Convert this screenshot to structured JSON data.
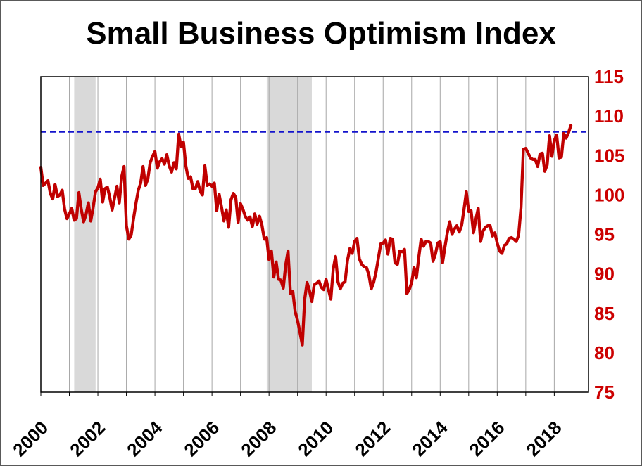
{
  "chart_data": {
    "type": "line",
    "title": "Small Business Optimism Index",
    "xlim": [
      2000,
      2019.2
    ],
    "ylim": [
      75,
      115
    ],
    "y_ticks": [
      75,
      80,
      85,
      90,
      95,
      100,
      105,
      110,
      115
    ],
    "x_tick_labels": [
      "2000",
      "2002",
      "2004",
      "2006",
      "2008",
      "2010",
      "2012",
      "2014",
      "2016",
      "2018"
    ],
    "gridline_years": [
      2000,
      2001,
      2002,
      2003,
      2004,
      2005,
      2006,
      2007,
      2008,
      2009,
      2010,
      2011,
      2012,
      2013,
      2014,
      2015,
      2016,
      2017,
      2018
    ],
    "reference_line": {
      "value": 108.0,
      "style": "dashed"
    },
    "recession_bands": [
      {
        "start": 2001.17,
        "end": 2001.92
      },
      {
        "start": 2007.92,
        "end": 2009.5
      }
    ],
    "colors": {
      "line": "#C00000",
      "y_tick_label": "#CC0000",
      "x_tick_label": "#000000",
      "gridline": "#A6A6A6",
      "recession_band": "#D9D9D9",
      "reference": "#1414CC",
      "plot_border": "#000000"
    },
    "grid": "vertical-only",
    "legend": "none",
    "series": [
      {
        "year": 2000,
        "values": [
          103.5,
          101.2,
          101.5,
          101.8,
          100.2,
          99.5,
          101.3,
          99.8,
          100.0,
          100.6,
          98.2,
          97.0
        ]
      },
      {
        "year": 2001,
        "values": [
          97.6,
          98.3,
          96.8,
          97.0,
          100.3,
          98.2,
          96.6,
          97.5,
          99.0,
          96.7,
          98.4,
          100.4
        ]
      },
      {
        "year": 2002,
        "values": [
          100.9,
          102.0,
          99.1,
          100.8,
          101.0,
          99.7,
          98.1,
          99.6,
          101.1,
          99.0,
          102.3,
          103.6
        ]
      },
      {
        "year": 2003,
        "values": [
          96.1,
          94.4,
          94.9,
          97.0,
          98.9,
          100.6,
          101.5,
          103.6,
          101.2,
          102.0,
          104.1,
          104.9
        ]
      },
      {
        "year": 2004,
        "values": [
          105.5,
          103.4,
          104.2,
          104.6,
          103.9,
          105.1,
          103.7,
          102.9,
          104.1,
          103.3,
          107.7,
          106.1
        ]
      },
      {
        "year": 2005,
        "values": [
          106.7,
          103.7,
          102.1,
          102.3,
          100.8,
          100.8,
          101.7,
          100.5,
          100.0,
          103.7,
          101.2,
          101.4
        ]
      },
      {
        "year": 2006,
        "values": [
          101.1,
          101.5,
          98.0,
          100.1,
          98.5,
          96.7,
          98.1,
          95.9,
          99.4,
          100.2,
          99.7,
          96.5
        ]
      },
      {
        "year": 2007,
        "values": [
          98.9,
          98.2,
          97.3,
          96.8,
          97.2,
          96.0,
          97.6,
          96.3,
          97.3,
          96.2,
          94.4,
          94.6
        ]
      },
      {
        "year": 2008,
        "values": [
          91.8,
          92.9,
          89.6,
          91.5,
          89.3,
          89.2,
          88.2,
          91.1,
          92.9,
          87.5,
          87.8,
          85.2
        ]
      },
      {
        "year": 2009,
        "values": [
          84.1,
          82.6,
          81.0,
          86.8,
          88.9,
          87.9,
          86.5,
          88.6,
          88.8,
          89.1,
          88.3,
          88.0
        ]
      },
      {
        "year": 2010,
        "values": [
          89.3,
          88.0,
          86.8,
          90.6,
          92.2,
          89.0,
          88.1,
          88.8,
          89.0,
          91.7,
          93.2,
          92.6
        ]
      },
      {
        "year": 2011,
        "values": [
          94.1,
          94.5,
          91.9,
          91.2,
          90.9,
          90.8,
          89.9,
          88.1,
          88.9,
          90.2,
          92.0,
          93.8
        ]
      },
      {
        "year": 2012,
        "values": [
          93.9,
          94.3,
          92.5,
          94.5,
          94.4,
          91.4,
          91.2,
          92.9,
          92.8,
          93.1,
          87.5,
          88.0
        ]
      },
      {
        "year": 2013,
        "values": [
          88.9,
          90.8,
          89.5,
          92.1,
          94.4,
          93.5,
          94.1,
          94.1,
          93.9,
          91.6,
          92.5,
          93.9
        ]
      },
      {
        "year": 2014,
        "values": [
          94.1,
          91.4,
          93.4,
          95.2,
          96.6,
          95.0,
          95.7,
          96.1,
          95.3,
          96.1,
          98.1,
          100.4
        ]
      },
      {
        "year": 2015,
        "values": [
          97.9,
          98.0,
          95.2,
          96.9,
          98.3,
          94.1,
          95.4,
          95.9,
          96.1,
          96.1,
          94.8,
          95.2
        ]
      },
      {
        "year": 2016,
        "values": [
          93.9,
          92.9,
          92.6,
          93.6,
          93.8,
          94.5,
          94.6,
          94.4,
          94.1,
          94.9,
          98.4,
          105.8
        ]
      },
      {
        "year": 2017,
        "values": [
          105.9,
          105.3,
          104.7,
          104.5,
          104.5,
          103.6,
          105.2,
          105.3,
          103.0,
          103.8,
          107.5,
          104.9
        ]
      },
      {
        "year": 2018,
        "values": [
          106.9,
          107.6,
          104.7,
          104.8,
          107.8,
          107.2,
          107.9,
          108.8
        ]
      }
    ]
  }
}
